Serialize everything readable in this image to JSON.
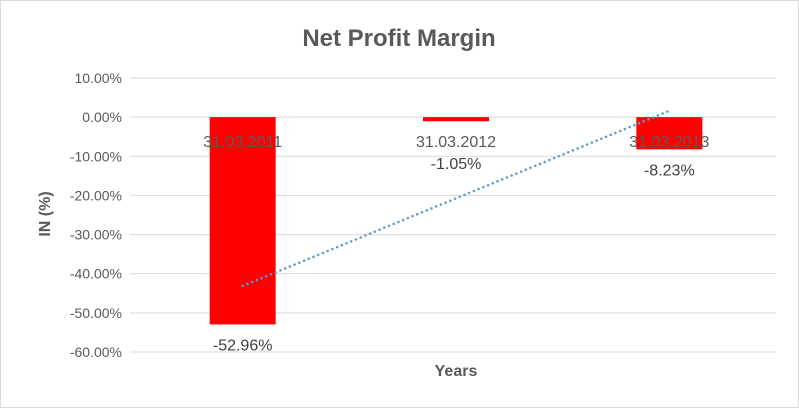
{
  "chart_data": {
    "type": "bar",
    "title": "Net Profit Margin",
    "xlabel": "Years",
    "ylabel": "IN (%)",
    "categories": [
      "31.03.2011",
      "31.03.2012",
      "31.03.2013"
    ],
    "values": [
      -52.96,
      -1.05,
      -8.23
    ],
    "data_labels": [
      "-52.96%",
      "-1.05%",
      "-8.23%"
    ],
    "ylim": [
      -60,
      10
    ],
    "yticks": [
      10,
      0,
      -10,
      -20,
      -30,
      -40,
      -50,
      -60
    ],
    "ytick_labels": [
      "10.00%",
      "0.00%",
      "-10.00%",
      "-20.00%",
      "-30.00%",
      "-40.00%",
      "-50.00%",
      "-60.00%"
    ],
    "grid": true,
    "trendline": {
      "type": "linear",
      "style": "dotted",
      "color": "#5b9bd5"
    },
    "bar_color": "#ff0000"
  }
}
